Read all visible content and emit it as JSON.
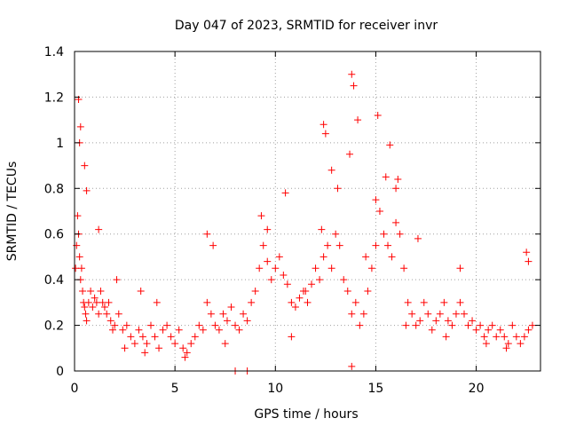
{
  "chart_data": {
    "type": "scatter",
    "title": "Day 047 of 2023, SRMTID for receiver invr",
    "xlabel": "GPS time / hours",
    "ylabel": "SRMTID / TECUs",
    "xlim": [
      0,
      23.2
    ],
    "ylim": [
      0,
      1.4
    ],
    "x_ticks": [
      "0",
      "5",
      "10",
      "15",
      "20"
    ],
    "x_tick_values": [
      0,
      5,
      10,
      15,
      20
    ],
    "y_ticks": [
      "0",
      "0.2",
      "0.4",
      "0.6",
      "0.8",
      "1",
      "1.2",
      "1.4"
    ],
    "y_tick_values": [
      0,
      0.2,
      0.4,
      0.6,
      0.8,
      1.0,
      1.2,
      1.4
    ],
    "grid": true,
    "marker": "plus",
    "series": [
      {
        "name": "SRMTID",
        "color": "#ff0000",
        "x": [
          0.05,
          0.1,
          0.15,
          0.2,
          0.25,
          0.3,
          0.35,
          0.4,
          0.45,
          0.5,
          0.55,
          0.6,
          0.7,
          0.8,
          0.9,
          1.0,
          1.1,
          1.2,
          1.3,
          1.4,
          1.5,
          1.6,
          1.7,
          1.8,
          1.9,
          2.0,
          2.2,
          2.4,
          2.6,
          2.8,
          3.0,
          3.2,
          3.4,
          3.6,
          3.8,
          4.0,
          4.2,
          4.4,
          4.6,
          4.8,
          5.0,
          5.2,
          5.4,
          5.6,
          5.8,
          6.0,
          6.2,
          6.4,
          6.6,
          6.8,
          7.0,
          7.2,
          7.4,
          7.6,
          7.8,
          8.0,
          8.2,
          8.4,
          8.6,
          8.8,
          9.0,
          9.2,
          9.4,
          9.6,
          9.8,
          10.0,
          10.2,
          10.4,
          10.6,
          10.8,
          11.0,
          11.2,
          11.4,
          11.6,
          11.8,
          12.0,
          12.2,
          12.4,
          12.6,
          12.8,
          13.0,
          13.2,
          13.4,
          13.6,
          13.8,
          14.0,
          14.2,
          14.4,
          14.6,
          14.8,
          15.0,
          15.2,
          15.4,
          15.6,
          15.8,
          16.0,
          16.2,
          16.4,
          16.6,
          16.8,
          17.0,
          17.2,
          17.4,
          17.6,
          17.8,
          18.0,
          18.2,
          18.4,
          18.6,
          18.8,
          19.0,
          19.2,
          19.4,
          19.6,
          19.8,
          20.0,
          20.2,
          20.4,
          20.6,
          20.8,
          21.0,
          21.2,
          21.4,
          21.6,
          21.8,
          22.0,
          22.2,
          22.4,
          22.6,
          22.8,
          0.2,
          0.3,
          0.25,
          0.5,
          0.6,
          1.2,
          2.1,
          3.3,
          4.1,
          6.6,
          6.9,
          9.3,
          9.6,
          10.5,
          12.3,
          12.4,
          12.5,
          12.8,
          13.1,
          13.7,
          13.8,
          13.9,
          14.1,
          15.0,
          15.1,
          15.5,
          15.7,
          16.0,
          16.1,
          17.1,
          19.2,
          22.5,
          22.6,
          8.0,
          8.6,
          13.8,
          2.5,
          3.5,
          5.5,
          7.5,
          10.8,
          11.5,
          14.5,
          16.5,
          18.5,
          20.5,
          21.5
        ],
        "y": [
          0.45,
          0.55,
          0.68,
          0.6,
          0.5,
          0.4,
          0.45,
          0.35,
          0.3,
          0.28,
          0.25,
          0.22,
          0.3,
          0.35,
          0.28,
          0.32,
          0.3,
          0.25,
          0.35,
          0.3,
          0.28,
          0.25,
          0.3,
          0.22,
          0.18,
          0.2,
          0.25,
          0.18,
          0.2,
          0.15,
          0.12,
          0.18,
          0.15,
          0.12,
          0.2,
          0.15,
          0.1,
          0.18,
          0.2,
          0.15,
          0.12,
          0.18,
          0.1,
          0.08,
          0.12,
          0.15,
          0.2,
          0.18,
          0.3,
          0.25,
          0.2,
          0.18,
          0.25,
          0.22,
          0.28,
          0.2,
          0.18,
          0.25,
          0.22,
          0.3,
          0.35,
          0.45,
          0.55,
          0.48,
          0.4,
          0.45,
          0.5,
          0.42,
          0.38,
          0.3,
          0.28,
          0.32,
          0.35,
          0.3,
          0.38,
          0.45,
          0.4,
          0.5,
          0.55,
          0.45,
          0.6,
          0.55,
          0.4,
          0.35,
          0.25,
          0.3,
          0.2,
          0.25,
          0.35,
          0.45,
          0.55,
          0.7,
          0.6,
          0.55,
          0.5,
          0.65,
          0.6,
          0.45,
          0.3,
          0.25,
          0.2,
          0.22,
          0.3,
          0.25,
          0.18,
          0.22,
          0.25,
          0.3,
          0.22,
          0.2,
          0.25,
          0.3,
          0.25,
          0.2,
          0.22,
          0.18,
          0.2,
          0.15,
          0.18,
          0.2,
          0.15,
          0.18,
          0.15,
          0.12,
          0.2,
          0.15,
          0.12,
          0.15,
          0.18,
          0.2,
          1.19,
          1.07,
          1.0,
          0.9,
          0.79,
          0.62,
          0.4,
          0.35,
          0.3,
          0.6,
          0.55,
          0.68,
          0.62,
          0.78,
          0.62,
          1.08,
          1.04,
          0.88,
          0.8,
          0.95,
          1.3,
          1.25,
          1.1,
          0.75,
          1.12,
          0.85,
          0.99,
          0.8,
          0.84,
          0.58,
          0.45,
          0.52,
          0.48,
          0.0,
          0.0,
          0.02,
          0.1,
          0.08,
          0.06,
          0.12,
          0.15,
          0.35,
          0.5,
          0.2,
          0.15,
          0.12,
          0.1
        ]
      }
    ]
  }
}
